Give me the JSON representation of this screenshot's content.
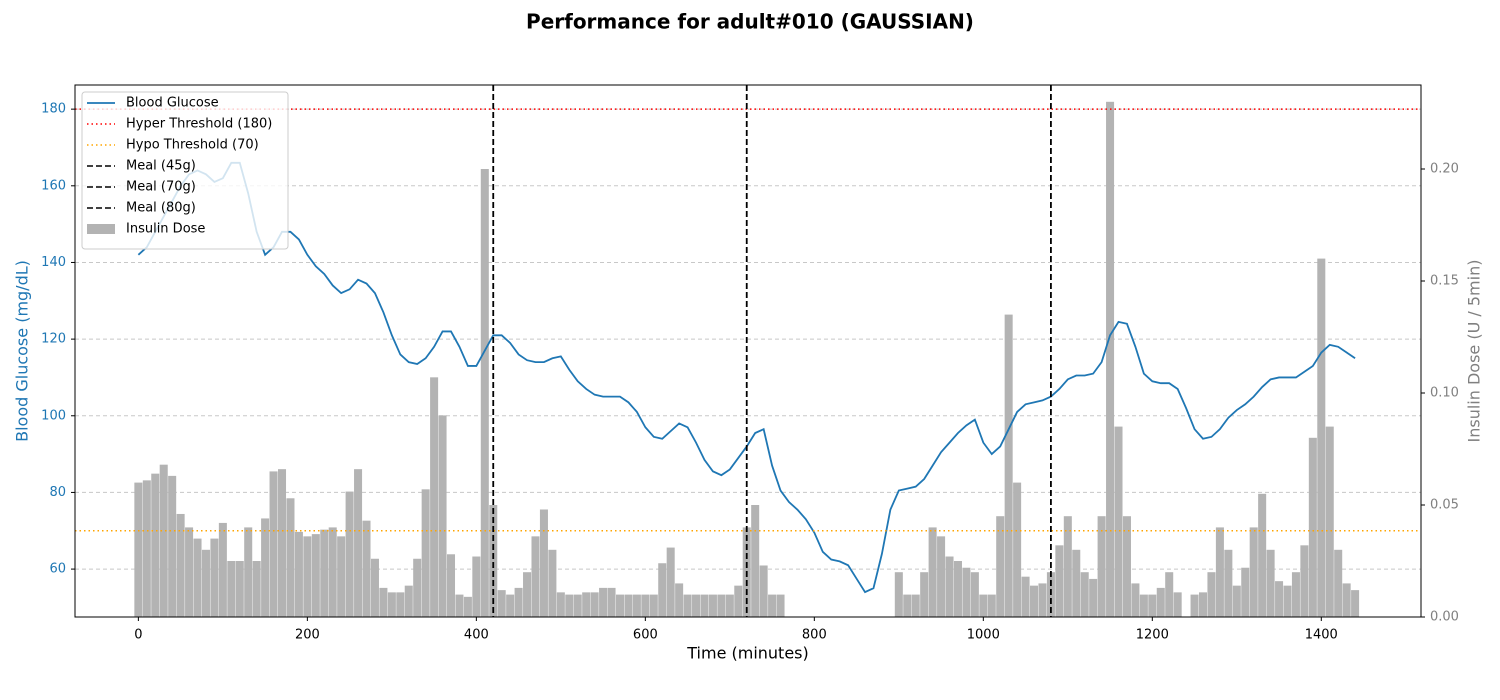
{
  "chart_data": {
    "type": "line",
    "title": "Performance for adult#010 (GAUSSIAN)",
    "xlabel": "Time (minutes)",
    "ylabel": "Blood Glucose (mg/dL)",
    "y2label": "Insulin Dose (U / 5min)",
    "ylabel_color": "#1f77b4",
    "y2label_color": "#808080",
    "xlim": [
      -75,
      1518
    ],
    "xticks": [
      0,
      200,
      400,
      600,
      800,
      1000,
      1200,
      1400
    ],
    "ylim": [
      47.5,
      186.3
    ],
    "yticks": [
      60,
      80,
      100,
      120,
      140,
      160,
      180
    ],
    "y2lim": [
      0,
      0.2375
    ],
    "y2ticks": [
      {
        "value": 0,
        "label": "0.00"
      },
      {
        "value": 0.05,
        "label": "0.05"
      },
      {
        "value": 0.1,
        "label": "0.10"
      },
      {
        "value": 0.15,
        "label": "0.15"
      },
      {
        "value": 0.2,
        "label": "0.20"
      }
    ],
    "grid": true,
    "legend": "upper left",
    "x": [
      0,
      10,
      20,
      30,
      40,
      50,
      60,
      70,
      80,
      90,
      100,
      110,
      120,
      130,
      140,
      150,
      160,
      170,
      180,
      190,
      200,
      210,
      220,
      230,
      240,
      250,
      260,
      270,
      280,
      290,
      300,
      310,
      320,
      330,
      340,
      350,
      360,
      370,
      380,
      390,
      400,
      410,
      420,
      430,
      440,
      450,
      460,
      470,
      480,
      490,
      500,
      510,
      520,
      530,
      540,
      550,
      560,
      570,
      580,
      590,
      600,
      610,
      620,
      630,
      640,
      650,
      660,
      670,
      680,
      690,
      700,
      710,
      720,
      730,
      740,
      750,
      760,
      770,
      780,
      790,
      800,
      810,
      820,
      830,
      840,
      850,
      860,
      870,
      880,
      890,
      900,
      910,
      920,
      930,
      940,
      950,
      960,
      970,
      980,
      990,
      1000,
      1010,
      1020,
      1030,
      1040,
      1050,
      1060,
      1070,
      1080,
      1090,
      1100,
      1110,
      1120,
      1130,
      1140,
      1150,
      1160,
      1170,
      1180,
      1190,
      1200,
      1210,
      1220,
      1230,
      1240,
      1250,
      1260,
      1270,
      1280,
      1290,
      1300,
      1310,
      1320,
      1330,
      1340,
      1350,
      1360,
      1370,
      1380,
      1390,
      1400,
      1410,
      1420,
      1430,
      1440
    ],
    "series": [
      {
        "name": "Blood Glucose",
        "type": "line",
        "color": "#1f77b4",
        "values": [
          142,
          144,
          148,
          152,
          156,
          160,
          163,
          164,
          163,
          161,
          162,
          166,
          166,
          158,
          148,
          142,
          144,
          148,
          148,
          146,
          142,
          139,
          137,
          134,
          132,
          133,
          135.5,
          134.5,
          132,
          127,
          121,
          116,
          114,
          113.5,
          115,
          118,
          122,
          122,
          118,
          113,
          113,
          117,
          121,
          121,
          119,
          116,
          114.5,
          114,
          114,
          115,
          115.5,
          112,
          109,
          107,
          105.5,
          105,
          105,
          105,
          103.5,
          101,
          97,
          94.5,
          94,
          96,
          98,
          97,
          93,
          88.5,
          85.5,
          84.5,
          86,
          89,
          92,
          95.5,
          96.5,
          87,
          80.5,
          77.5,
          75.5,
          73,
          69.5,
          64.5,
          62.5,
          62,
          61,
          57.5,
          54,
          55,
          64,
          75.5,
          80.5,
          81,
          81.5,
          83.5,
          87,
          90.5,
          93,
          95.5,
          97.5,
          99,
          93,
          90,
          92,
          96.5,
          101,
          103,
          103.5,
          104,
          105,
          107,
          109.5,
          110.5,
          110.5,
          111,
          114,
          121,
          124.5,
          124,
          118,
          111,
          109,
          108.5,
          108.5,
          107,
          102,
          96.5,
          94,
          94.5,
          96.5,
          99.5,
          101.5,
          103,
          105,
          107.5,
          109.5,
          110,
          110,
          110,
          111.5,
          113,
          116.5,
          118.5,
          118,
          116.5,
          115
        ]
      },
      {
        "name": "Insulin Dose",
        "type": "bar",
        "axis": "y2",
        "color": "#b3b3b3",
        "values": [
          0.06,
          0.061,
          0.064,
          0.068,
          0.063,
          0.046,
          0.04,
          0.035,
          0.03,
          0.035,
          0.042,
          0.025,
          0.025,
          0.04,
          0.025,
          0.044,
          0.065,
          0.066,
          0.053,
          0.038,
          0.036,
          0.037,
          0.039,
          0.04,
          0.036,
          0.056,
          0.066,
          0.043,
          0.026,
          0.013,
          0.011,
          0.011,
          0.014,
          0.026,
          0.057,
          0.107,
          0.09,
          0.028,
          0.01,
          0.009,
          0.027,
          0.2,
          0.05,
          0.012,
          0.01,
          0.013,
          0.02,
          0.036,
          0.048,
          0.03,
          0.011,
          0.01,
          0.01,
          0.011,
          0.011,
          0.013,
          0.013,
          0.01,
          0.01,
          0.01,
          0.01,
          0.01,
          0.024,
          0.031,
          0.015,
          0.01,
          0.01,
          0.01,
          0.01,
          0.01,
          0.01,
          0.014,
          0.04,
          0.05,
          0.023,
          0.01,
          0.01,
          0,
          0,
          0,
          0,
          0,
          0,
          0,
          0,
          0,
          0,
          0,
          0,
          0,
          0.02,
          0.01,
          0.01,
          0.02,
          0.04,
          0.036,
          0.027,
          0.025,
          0.022,
          0.02,
          0.01,
          0.01,
          0.045,
          0.135,
          0.06,
          0.018,
          0.014,
          0.015,
          0.02,
          0.032,
          0.045,
          0.03,
          0.02,
          0.017,
          0.045,
          0.23,
          0.085,
          0.045,
          0.015,
          0.01,
          0.01,
          0.013,
          0.02,
          0.011,
          0,
          0.01,
          0.011,
          0.02,
          0.04,
          0.03,
          0.014,
          0.022,
          0.04,
          0.055,
          0.03,
          0.016,
          0.014,
          0.02,
          0.032,
          0.08,
          0.16,
          0.085,
          0.03,
          0.015,
          0.012
        ]
      }
    ],
    "hlines": [
      {
        "name": "Hyper Threshold (180)",
        "value": 180,
        "color": "#ff0000"
      },
      {
        "name": "Hypo Threshold (70)",
        "value": 70,
        "color": "#ffa500"
      }
    ],
    "vlines": [
      {
        "name": "Meal (45g)",
        "value": 420,
        "color": "#000000"
      },
      {
        "name": "Meal (70g)",
        "value": 720,
        "color": "#000000"
      },
      {
        "name": "Meal (80g)",
        "value": 1080,
        "color": "#000000"
      }
    ]
  }
}
